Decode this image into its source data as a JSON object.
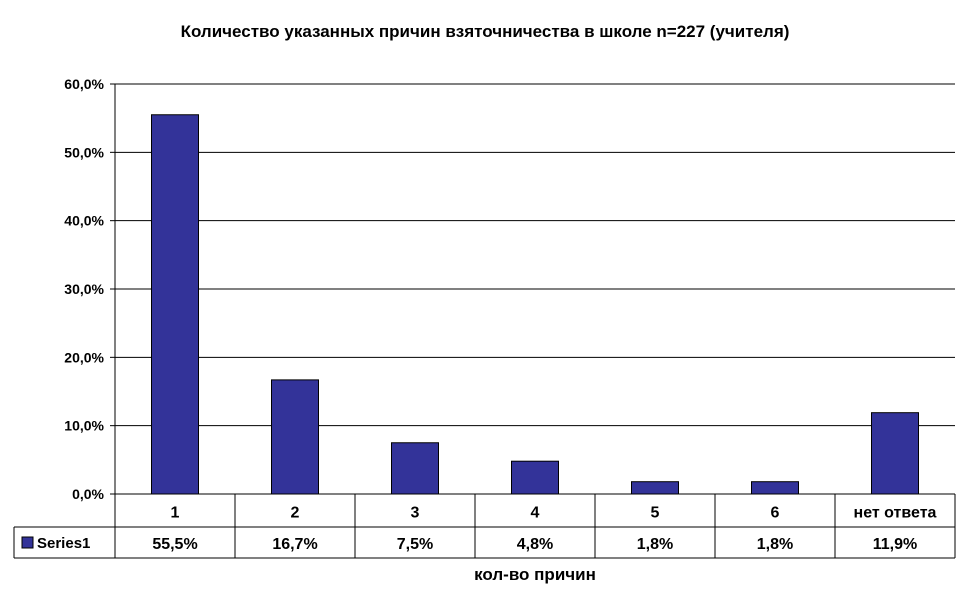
{
  "colors": {
    "bar": "#333399",
    "axis": "#000000",
    "grid": "#000000"
  },
  "chart_data": {
    "type": "bar",
    "title": "Количество указанных причин взяточничества в школе n=227 (учителя)",
    "xlabel": "кол-во причин",
    "ylabel": "",
    "categories": [
      "1",
      "2",
      "3",
      "4",
      "5",
      "6",
      "нет ответа"
    ],
    "series": [
      {
        "name": "Series1",
        "values": [
          55.5,
          16.7,
          7.5,
          4.8,
          1.8,
          1.8,
          11.9
        ],
        "labels": [
          "55,5%",
          "16,7%",
          "7,5%",
          "4,8%",
          "1,8%",
          "1,8%",
          "11,9%"
        ]
      }
    ],
    "ylim": [
      0,
      60
    ],
    "yticks": [
      0,
      10,
      20,
      30,
      40,
      50,
      60
    ],
    "ytick_labels": [
      "0,0%",
      "10,0%",
      "20,0%",
      "30,0%",
      "40,0%",
      "50,0%",
      "60,0%"
    ],
    "grid": true,
    "legend": "data-table-left"
  }
}
